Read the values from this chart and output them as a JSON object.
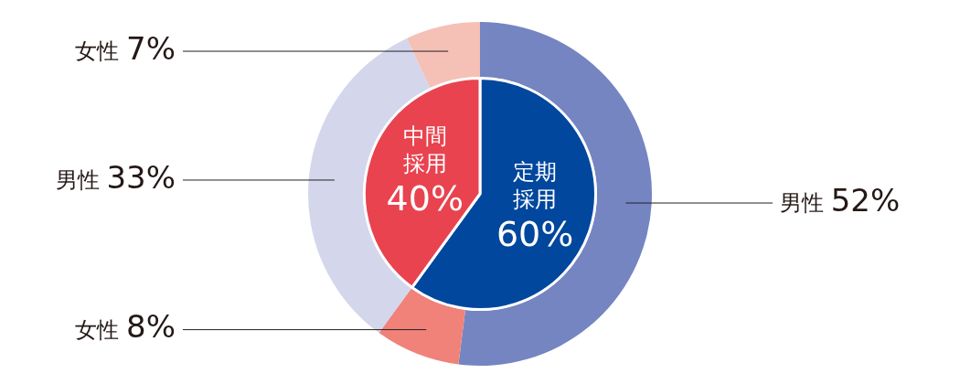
{
  "chart_data": [
    {
      "type": "donut",
      "categories": [
        "男性",
        "女性",
        "男性",
        "女性"
      ],
      "values": [
        52,
        8,
        33,
        7
      ],
      "colors": [
        "#7585c2",
        "#f0827a",
        "#d4d6ec",
        "#f5c0b5"
      ],
      "value_labels": [
        "52%",
        "8%",
        "33%",
        "7%"
      ],
      "legend": false
    },
    {
      "type": "pie",
      "categories": [
        "定期採用",
        "中間採用"
      ],
      "values": [
        60,
        40
      ],
      "colors": [
        "#00479d",
        "#e8434f"
      ],
      "value_labels": [
        "60%",
        "40%"
      ],
      "legend": false
    }
  ]
}
